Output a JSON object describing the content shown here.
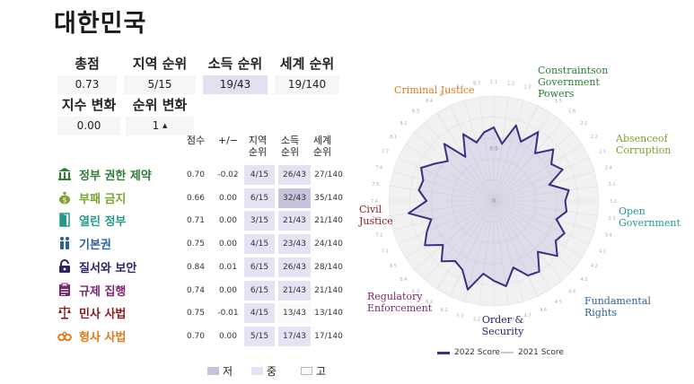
{
  "title": "대한민국",
  "summary": {
    "overall_label": "총점",
    "overall_value": "0.73",
    "regional_label": "지역 순위",
    "regional_value": "5/15",
    "income_label": "소득 순위",
    "income_value": "19/43",
    "global_label": "세계 순위",
    "global_value": "19/140",
    "score_change_label": "지수 변화",
    "score_change_value": "0.00",
    "rank_change_label": "순위 변화",
    "rank_change_value": "1",
    "rank_change_arrow": "▲"
  },
  "table": {
    "headers": {
      "score": "점수",
      "change": "+/−",
      "regional": "지역 순위",
      "income": "소득 순위",
      "global": "세계 순위"
    },
    "rows": [
      {
        "icon": "government-building-icon",
        "label": "정부 권한 제약",
        "score": "0.70",
        "change": "-0.02",
        "regional": "4/15",
        "income": "26/43",
        "global": "27/140",
        "color": "#2e7d32",
        "income_level": "mid"
      },
      {
        "icon": "money-bag-icon",
        "label": "부패 금지",
        "score": "0.66",
        "change": "0.00",
        "regional": "6/15",
        "income": "32/43",
        "global": "35/140",
        "color": "#7ba12e",
        "income_level": "low"
      },
      {
        "icon": "open-door-icon",
        "label": "열린 정부",
        "score": "0.71",
        "change": "0.00",
        "regional": "3/15",
        "income": "21/43",
        "global": "21/140",
        "color": "#27998a",
        "income_level": "mid"
      },
      {
        "icon": "people-icon",
        "label": "기본권",
        "score": "0.75",
        "change": "0.00",
        "regional": "4/15",
        "income": "23/43",
        "global": "24/140",
        "color": "#2d5f9a",
        "income_level": "mid"
      },
      {
        "icon": "padlock-icon",
        "label": "질서와 보안",
        "score": "0.84",
        "change": "0.01",
        "regional": "6/15",
        "income": "26/43",
        "global": "28/140",
        "color": "#2d2466",
        "income_level": "mid"
      },
      {
        "icon": "clipboard-icon",
        "label": "규제 집행",
        "score": "0.74",
        "change": "0.00",
        "regional": "6/15",
        "income": "21/43",
        "global": "21/140",
        "color": "#7a2970",
        "income_level": "mid"
      },
      {
        "icon": "scales-icon",
        "label": "민사 사법",
        "score": "0.75",
        "change": "-0.01",
        "regional": "4/15",
        "income": "13/43",
        "global": "13/140",
        "color": "#8b1a1a",
        "income_level": "high"
      },
      {
        "icon": "handcuffs-icon",
        "label": "형사 사법",
        "score": "0.70",
        "change": "0.00",
        "regional": "5/15",
        "income": "17/43",
        "global": "17/140",
        "color": "#e07b1a",
        "income_level": "mid"
      }
    ]
  },
  "level_legend": [
    {
      "label": "저",
      "color": "#c9c2df"
    },
    {
      "label": "중",
      "color": "#e6e2f3"
    },
    {
      "label": "고",
      "color": "#fafafa"
    }
  ],
  "chart_data": {
    "type": "radar",
    "center_label": "0",
    "mid_label": "0.5",
    "range": [
      0,
      1
    ],
    "groups": [
      {
        "label": "Constraintson Government Powers",
        "color": "#2e7d32"
      },
      {
        "label": "Absenceof Corruption",
        "color": "#7ba12e"
      },
      {
        "label": "Open Government",
        "color": "#27998a"
      },
      {
        "label": "Fundamental Rights",
        "color": "#2d5f9a"
      },
      {
        "label": "Order & Security",
        "color": "#2d2466"
      },
      {
        "label": "Regulatory Enforcement",
        "color": "#7a2970"
      },
      {
        "label": "Civil Justice",
        "color": "#8b1a1a"
      },
      {
        "label": "Criminal Justice",
        "color": "#e07b1a"
      }
    ],
    "spoke_labels": [
      "1.1",
      "1.2",
      "1.3",
      "1.4",
      "1.5",
      "1.6",
      "2.1",
      "2.2",
      "2.3",
      "2.4",
      "3.1",
      "3.2",
      "3.3",
      "3.4",
      "4.1",
      "4.2",
      "4.3",
      "4.4",
      "4.5",
      "4.6",
      "4.7",
      "4.8",
      "5.1",
      "5.2",
      "5.3",
      "6.1",
      "6.2",
      "6.3",
      "6.4",
      "6.5",
      "7.1",
      "7.2",
      "7.3",
      "7.4",
      "7.5",
      "7.6",
      "7.7",
      "8.1",
      "8.2",
      "8.3",
      "8.4",
      "8.5",
      "8.6",
      "8.7"
    ],
    "series": [
      {
        "name": "2022 Score",
        "color": "#3b2f86",
        "values": [
          0.7,
          0.55,
          0.75,
          0.62,
          0.78,
          0.6,
          0.75,
          0.65,
          0.72,
          0.55,
          0.72,
          0.68,
          0.7,
          0.62,
          0.74,
          0.7,
          0.8,
          0.64,
          0.8,
          0.78,
          0.66,
          0.82,
          0.76,
          0.7,
          0.88,
          0.72,
          0.68,
          0.76,
          0.64,
          0.78,
          0.7,
          0.62,
          0.82,
          0.64,
          0.72,
          0.7,
          0.76,
          0.66,
          0.58,
          0.72,
          0.5,
          0.7,
          0.58,
          0.66
        ]
      },
      {
        "name": "2021 Score",
        "color": "#c8c8c8",
        "values": [
          0.71,
          0.56,
          0.76,
          0.63,
          0.79,
          0.61,
          0.75,
          0.66,
          0.72,
          0.56,
          0.73,
          0.68,
          0.7,
          0.63,
          0.74,
          0.71,
          0.8,
          0.65,
          0.8,
          0.78,
          0.67,
          0.82,
          0.76,
          0.7,
          0.87,
          0.72,
          0.69,
          0.76,
          0.65,
          0.78,
          0.7,
          0.63,
          0.82,
          0.65,
          0.73,
          0.7,
          0.77,
          0.66,
          0.59,
          0.72,
          0.51,
          0.7,
          0.59,
          0.66
        ]
      }
    ]
  }
}
